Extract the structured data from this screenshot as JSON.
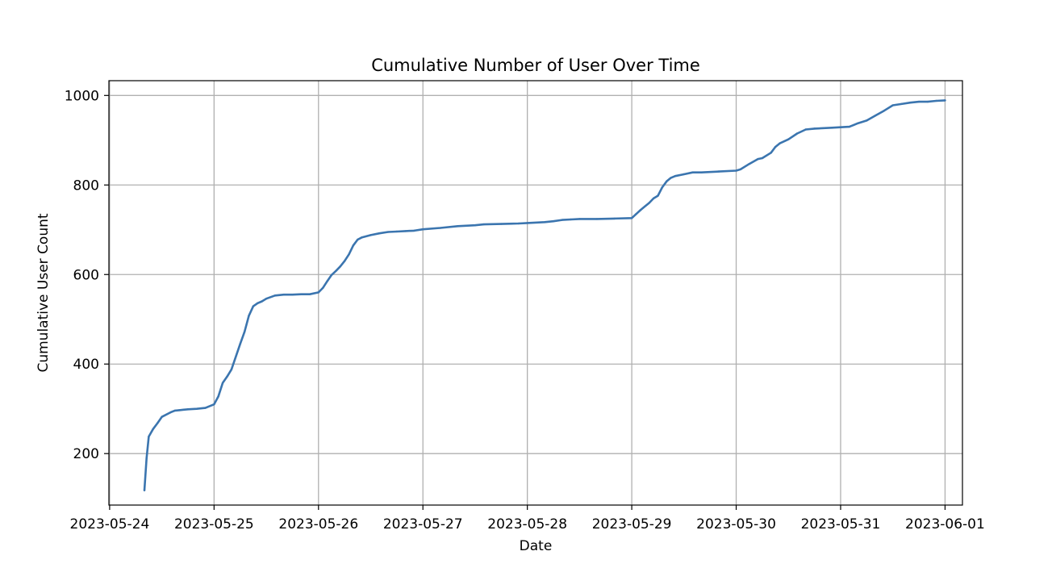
{
  "chart_data": {
    "type": "line",
    "title": "Cumulative Number of User Over Time",
    "xlabel": "Date",
    "ylabel": "Cumulative User Count",
    "grid": true,
    "xlim": [
      "2023-05-23T23:50",
      "2023-06-01T04:00"
    ],
    "ylim": [
      85,
      1033
    ],
    "x_ticks": [
      "2023-05-24",
      "2023-05-25",
      "2023-05-26",
      "2023-05-27",
      "2023-05-28",
      "2023-05-29",
      "2023-05-30",
      "2023-05-31",
      "2023-06-01"
    ],
    "y_ticks": [
      200,
      400,
      600,
      800,
      1000
    ],
    "series": [
      {
        "color": "#3b75af",
        "x": [
          "2023-05-24T08:00",
          "2023-05-24T08:30",
          "2023-05-24T09:00",
          "2023-05-24T10:00",
          "2023-05-24T11:00",
          "2023-05-24T12:00",
          "2023-05-24T14:00",
          "2023-05-24T15:00",
          "2023-05-24T16:00",
          "2023-05-24T17:00",
          "2023-05-24T18:00",
          "2023-05-24T20:00",
          "2023-05-24T22:00",
          "2023-05-25T00:00",
          "2023-05-25T01:00",
          "2023-05-25T02:00",
          "2023-05-25T03:00",
          "2023-05-25T04:00",
          "2023-05-25T06:00",
          "2023-05-25T07:00",
          "2023-05-25T08:00",
          "2023-05-25T09:00",
          "2023-05-25T10:00",
          "2023-05-25T11:00",
          "2023-05-25T12:00",
          "2023-05-25T14:00",
          "2023-05-25T16:00",
          "2023-05-25T18:00",
          "2023-05-25T20:00",
          "2023-05-25T22:00",
          "2023-05-26T00:00",
          "2023-05-26T01:00",
          "2023-05-26T02:00",
          "2023-05-26T03:00",
          "2023-05-26T04:00",
          "2023-05-26T05:00",
          "2023-05-26T06:00",
          "2023-05-26T07:00",
          "2023-05-26T08:00",
          "2023-05-26T09:00",
          "2023-05-26T10:00",
          "2023-05-26T12:00",
          "2023-05-26T14:00",
          "2023-05-26T16:00",
          "2023-05-26T18:00",
          "2023-05-26T20:00",
          "2023-05-26T22:00",
          "2023-05-27T00:00",
          "2023-05-27T04:00",
          "2023-05-27T08:00",
          "2023-05-27T12:00",
          "2023-05-27T14:00",
          "2023-05-27T18:00",
          "2023-05-27T22:00",
          "2023-05-28T00:00",
          "2023-05-28T04:00",
          "2023-05-28T06:00",
          "2023-05-28T08:00",
          "2023-05-28T10:00",
          "2023-05-28T12:00",
          "2023-05-28T16:00",
          "2023-05-28T20:00",
          "2023-05-29T00:00",
          "2023-05-29T01:00",
          "2023-05-29T02:00",
          "2023-05-29T03:00",
          "2023-05-29T04:00",
          "2023-05-29T05:00",
          "2023-05-29T06:00",
          "2023-05-29T07:00",
          "2023-05-29T08:00",
          "2023-05-29T09:00",
          "2023-05-29T10:00",
          "2023-05-29T12:00",
          "2023-05-29T14:00",
          "2023-05-29T16:00",
          "2023-05-29T20:00",
          "2023-05-30T00:00",
          "2023-05-30T01:00",
          "2023-05-30T03:00",
          "2023-05-30T05:00",
          "2023-05-30T06:00",
          "2023-05-30T08:00",
          "2023-05-30T09:00",
          "2023-05-30T10:00",
          "2023-05-30T12:00",
          "2023-05-30T14:00",
          "2023-05-30T16:00",
          "2023-05-30T18:00",
          "2023-05-30T22:00",
          "2023-05-31T00:00",
          "2023-05-31T02:00",
          "2023-05-31T03:00",
          "2023-05-31T04:00",
          "2023-05-31T06:00",
          "2023-05-31T08:00",
          "2023-05-31T10:00",
          "2023-05-31T12:00",
          "2023-05-31T14:00",
          "2023-05-31T16:00",
          "2023-05-31T18:00",
          "2023-05-31T20:00",
          "2023-05-31T22:00",
          "2023-06-01T00:00"
        ],
        "y": [
          118,
          190,
          238,
          255,
          268,
          282,
          292,
          296,
          297,
          298,
          299,
          300,
          302,
          310,
          328,
          358,
          372,
          388,
          445,
          472,
          508,
          529,
          536,
          540,
          546,
          553,
          555,
          555,
          556,
          556,
          560,
          570,
          585,
          599,
          608,
          618,
          630,
          645,
          665,
          678,
          683,
          688,
          692,
          695,
          696,
          697,
          698,
          701,
          704,
          708,
          710,
          712,
          713,
          714,
          715,
          717,
          719,
          722,
          723,
          724,
          724,
          725,
          726,
          735,
          744,
          752,
          760,
          770,
          776,
          795,
          808,
          816,
          820,
          824,
          828,
          828,
          830,
          832,
          835,
          847,
          858,
          860,
          872,
          885,
          893,
          902,
          915,
          924,
          926,
          928,
          929,
          930,
          934,
          938,
          944,
          955,
          966,
          978,
          981,
          984,
          986,
          986,
          988,
          989
        ]
      }
    ]
  }
}
